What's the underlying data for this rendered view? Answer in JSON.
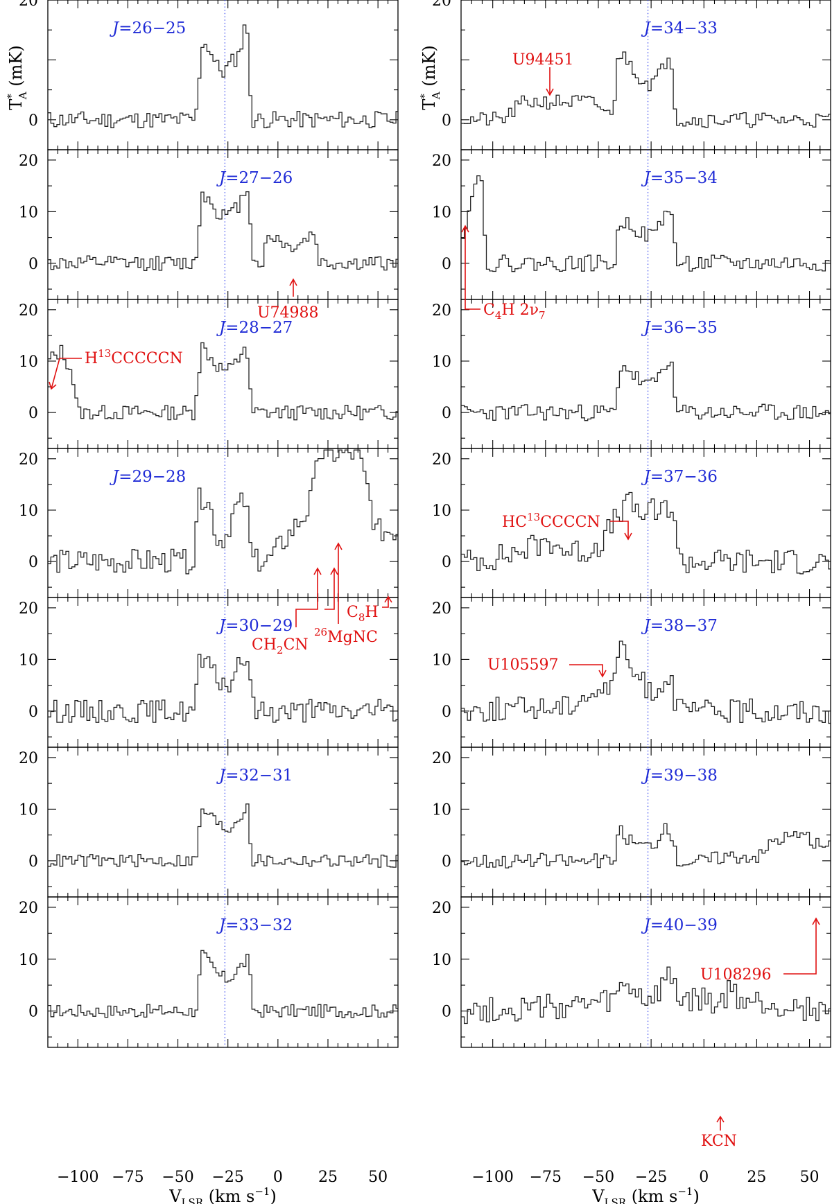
{
  "colors": {
    "transition_label": "#1f2bd6",
    "annotation": "#e01010",
    "trace": "#222222",
    "vline": "#3344ee"
  },
  "axes": {
    "ylabel": {
      "base": "T",
      "sup": "*",
      "sub": "A",
      "unit": " (mK)"
    },
    "xlabel": {
      "base": "V",
      "sub": "LSR",
      "unit_pre": " (km s",
      "unit_sup": "−1",
      "unit_post": ")"
    },
    "xlim": [
      -115,
      60
    ],
    "xticks": [
      -100,
      -75,
      -50,
      -25,
      0,
      25,
      50
    ],
    "xtick_labels": [
      "−100",
      "−75",
      "−50",
      "−25",
      "0",
      "25",
      "50"
    ],
    "ylim_panel": [
      -7,
      22
    ],
    "yticks": [
      0,
      10,
      20
    ],
    "ytick_labels": [
      "0",
      "10",
      "20"
    ],
    "ylim_top_panels": [
      -5,
      20
    ],
    "ytick_labels_top": [
      "0",
      "20"
    ],
    "systemic_velocity": -26.5
  },
  "chart_data": {
    "type": "line",
    "layout": "2 columns × 7 rows of stacked spectra",
    "series": [
      {
        "name": "J=26−25",
        "col": 0,
        "row": 0,
        "label": {
          "j": "J",
          "rest": "=26−25"
        },
        "segments": [
          [
            -115,
            0
          ],
          [
            -41,
            0
          ],
          [
            -38,
            13
          ],
          [
            -34,
            12
          ],
          [
            -31,
            9
          ],
          [
            -27,
            8
          ],
          [
            -22,
            10
          ],
          [
            -19,
            11
          ],
          [
            -16,
            18
          ],
          [
            -13,
            0
          ],
          [
            60,
            0
          ]
        ],
        "noise": 0.9,
        "seed": 11
      },
      {
        "name": "J=27−26",
        "col": 0,
        "row": 1,
        "label": {
          "j": "J",
          "rest": "=27−26"
        },
        "segments": [
          [
            -115,
            0
          ],
          [
            -41,
            0
          ],
          [
            -38,
            14
          ],
          [
            -34,
            12
          ],
          [
            -30,
            10
          ],
          [
            -25,
            9
          ],
          [
            -20,
            11
          ],
          [
            -15,
            15
          ],
          [
            -12,
            0
          ],
          [
            -8,
            0
          ],
          [
            -5,
            5
          ],
          [
            0,
            5
          ],
          [
            5,
            3
          ],
          [
            12,
            4
          ],
          [
            18,
            6
          ],
          [
            21,
            0
          ],
          [
            60,
            0
          ]
        ],
        "noise": 0.9,
        "seed": 12
      },
      {
        "name": "J=28−27",
        "col": 0,
        "row": 2,
        "label": {
          "j": "J",
          "rest": "=28−27"
        },
        "segments": [
          [
            -115,
            10
          ],
          [
            -108,
            12
          ],
          [
            -103,
            8
          ],
          [
            -100,
            0
          ],
          [
            -42,
            0
          ],
          [
            -38,
            13
          ],
          [
            -34,
            11
          ],
          [
            -30,
            9
          ],
          [
            -25,
            8
          ],
          [
            -20,
            10
          ],
          [
            -16,
            14
          ],
          [
            -13,
            0
          ],
          [
            60,
            0
          ]
        ],
        "noise": 0.9,
        "seed": 13
      },
      {
        "name": "J=29−28",
        "col": 0,
        "row": 3,
        "label": {
          "j": "J",
          "rest": "=29−28"
        },
        "segments": [
          [
            -115,
            0
          ],
          [
            -42,
            0
          ],
          [
            -39,
            13
          ],
          [
            -34,
            11
          ],
          [
            -30,
            4
          ],
          [
            -26,
            5
          ],
          [
            -22,
            10
          ],
          [
            -16,
            12
          ],
          [
            -13,
            0
          ],
          [
            -5,
            0
          ],
          [
            5,
            5
          ],
          [
            15,
            10
          ],
          [
            19,
            16
          ],
          [
            20,
            21
          ],
          [
            40,
            21
          ],
          [
            45,
            14
          ],
          [
            49,
            6
          ],
          [
            60,
            6
          ]
        ],
        "noise": 1.5,
        "seed": 14
      },
      {
        "name": "J=30−29",
        "col": 0,
        "row": 4,
        "label": {
          "j": "J",
          "rest": "=30−29"
        },
        "segments": [
          [
            -115,
            0
          ],
          [
            -42,
            0
          ],
          [
            -39,
            10
          ],
          [
            -34,
            8
          ],
          [
            -30,
            6
          ],
          [
            -25,
            5
          ],
          [
            -20,
            8
          ],
          [
            -15,
            11
          ],
          [
            -12,
            0
          ],
          [
            60,
            0
          ]
        ],
        "noise": 1.4,
        "seed": 15
      },
      {
        "name": "J=32−31",
        "col": 0,
        "row": 5,
        "label": {
          "j": "J",
          "rest": "=32−31"
        },
        "segments": [
          [
            -115,
            0
          ],
          [
            -41,
            0
          ],
          [
            -38,
            10
          ],
          [
            -34,
            9
          ],
          [
            -30,
            7
          ],
          [
            -25,
            6
          ],
          [
            -20,
            8
          ],
          [
            -15,
            11
          ],
          [
            -13,
            0
          ],
          [
            60,
            0
          ]
        ],
        "noise": 0.8,
        "seed": 16
      },
      {
        "name": "J=33−32",
        "col": 0,
        "row": 6,
        "label": {
          "j": "J",
          "rest": "=33−32"
        },
        "segments": [
          [
            -115,
            0
          ],
          [
            -41,
            0
          ],
          [
            -38,
            11
          ],
          [
            -34,
            9
          ],
          [
            -30,
            7
          ],
          [
            -25,
            6
          ],
          [
            -20,
            8
          ],
          [
            -15,
            10
          ],
          [
            -12,
            0
          ],
          [
            60,
            0
          ]
        ],
        "noise": 0.8,
        "seed": 17
      },
      {
        "name": "J=34−33",
        "col": 1,
        "row": 0,
        "label": {
          "j": "J",
          "rest": "=34−33"
        },
        "segments": [
          [
            -115,
            0
          ],
          [
            -95,
            0
          ],
          [
            -85,
            3
          ],
          [
            -75,
            3
          ],
          [
            -65,
            3
          ],
          [
            -55,
            3
          ],
          [
            -48,
            2
          ],
          [
            -43,
            0
          ],
          [
            -41,
            11
          ],
          [
            -36,
            10
          ],
          [
            -30,
            7
          ],
          [
            -25,
            6
          ],
          [
            -20,
            8
          ],
          [
            -16,
            12
          ],
          [
            -13,
            0
          ],
          [
            60,
            0
          ]
        ],
        "noise": 0.8,
        "seed": 21
      },
      {
        "name": "J=35−34",
        "col": 1,
        "row": 1,
        "label": {
          "j": "J",
          "rest": "=35−34"
        },
        "segments": [
          [
            -115,
            5
          ],
          [
            -110,
            12
          ],
          [
            -106,
            20
          ],
          [
            -103,
            0
          ],
          [
            -42,
            0
          ],
          [
            -40,
            8
          ],
          [
            -35,
            8
          ],
          [
            -30,
            6
          ],
          [
            -25,
            5
          ],
          [
            -20,
            8
          ],
          [
            -16,
            12
          ],
          [
            -13,
            0
          ],
          [
            60,
            0
          ]
        ],
        "noise": 1.0,
        "seed": 22
      },
      {
        "name": "J=36−35",
        "col": 1,
        "row": 2,
        "label": {
          "j": "J",
          "rest": "=36−35"
        },
        "segments": [
          [
            -115,
            0
          ],
          [
            -42,
            0
          ],
          [
            -39,
            10
          ],
          [
            -35,
            8
          ],
          [
            -30,
            6
          ],
          [
            -25,
            5
          ],
          [
            -20,
            8
          ],
          [
            -16,
            11
          ],
          [
            -13,
            0
          ],
          [
            60,
            0
          ]
        ],
        "noise": 1.0,
        "seed": 23
      },
      {
        "name": "J=37−36",
        "col": 1,
        "row": 3,
        "label": {
          "j": "J",
          "rest": "=37−36"
        },
        "segments": [
          [
            -115,
            0
          ],
          [
            -95,
            1
          ],
          [
            -80,
            3
          ],
          [
            -72,
            4
          ],
          [
            -65,
            2
          ],
          [
            -55,
            2
          ],
          [
            -48,
            4
          ],
          [
            -42,
            8
          ],
          [
            -38,
            11
          ],
          [
            -34,
            11
          ],
          [
            -30,
            9
          ],
          [
            -26,
            10
          ],
          [
            -21,
            9
          ],
          [
            -17,
            11
          ],
          [
            -14,
            10
          ],
          [
            -12,
            0
          ],
          [
            60,
            0
          ]
        ],
        "noise": 1.6,
        "seed": 24
      },
      {
        "name": "J=38−37",
        "col": 1,
        "row": 4,
        "label": {
          "j": "J",
          "rest": "=38−37"
        },
        "segments": [
          [
            -115,
            0
          ],
          [
            -65,
            1
          ],
          [
            -58,
            3
          ],
          [
            -50,
            4
          ],
          [
            -44,
            4
          ],
          [
            -41,
            12
          ],
          [
            -36,
            10
          ],
          [
            -33,
            7
          ],
          [
            -28,
            5
          ],
          [
            -24,
            4
          ],
          [
            -20,
            5
          ],
          [
            -16,
            8
          ],
          [
            -13,
            0
          ],
          [
            60,
            0
          ]
        ],
        "noise": 1.5,
        "seed": 25
      },
      {
        "name": "J=39−38",
        "col": 1,
        "row": 5,
        "label": {
          "j": "J",
          "rest": "=39−38"
        },
        "segments": [
          [
            -115,
            0
          ],
          [
            -42,
            0
          ],
          [
            -40,
            6
          ],
          [
            -35,
            4
          ],
          [
            -30,
            3
          ],
          [
            -25,
            3
          ],
          [
            -20,
            5
          ],
          [
            -16,
            7
          ],
          [
            -13,
            0
          ],
          [
            0,
            0
          ],
          [
            10,
            1
          ],
          [
            28,
            1
          ],
          [
            32,
            4
          ],
          [
            45,
            5
          ],
          [
            55,
            3
          ],
          [
            60,
            3
          ]
        ],
        "noise": 0.9,
        "seed": 26
      },
      {
        "name": "J=40−39",
        "col": 1,
        "row": 6,
        "label": {
          "j": "J",
          "rest": "=40−39"
        },
        "segments": [
          [
            -115,
            0
          ],
          [
            -55,
            1
          ],
          [
            -42,
            2
          ],
          [
            -38,
            5
          ],
          [
            -33,
            4
          ],
          [
            -28,
            2
          ],
          [
            -22,
            3
          ],
          [
            -18,
            6
          ],
          [
            -14,
            6
          ],
          [
            -12,
            2
          ],
          [
            0,
            2
          ],
          [
            8,
            1
          ],
          [
            12,
            4
          ],
          [
            18,
            2
          ],
          [
            60,
            0
          ]
        ],
        "noise": 1.6,
        "seed": 27
      }
    ]
  },
  "annotations": [
    {
      "text": "U74988"
    },
    {
      "text_pre": "H",
      "text_sup": "13",
      "text_post": "CCCCCN"
    },
    {
      "text_pre": "CH",
      "text_sub": "2",
      "text_post": "CN"
    },
    {
      "text_sup": "26",
      "text_post": "MgNC"
    },
    {
      "text_pre": "C",
      "text_sub": "8",
      "text_post": "H"
    },
    {
      "text": "U94451"
    },
    {
      "text_pre": "C",
      "text_sub": "4",
      "text_mid": "H  2ν",
      "text_sub2": "7"
    },
    {
      "text_pre": "HC",
      "text_sup": "13",
      "text_post": "CCCCN"
    },
    {
      "text": "U105597"
    },
    {
      "text": "U108296"
    },
    {
      "text": "KCN"
    }
  ]
}
